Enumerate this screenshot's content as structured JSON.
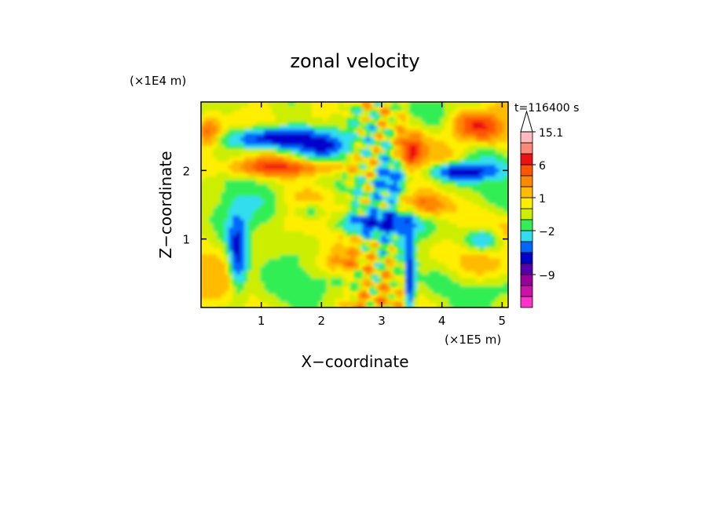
{
  "chart_data": {
    "type": "heatmap",
    "title": "zonal velocity",
    "xlabel": "X−coordinate",
    "ylabel": "Z−coordinate",
    "x_unit": "(×1E5 m)",
    "y_unit": "(×1E4 m)",
    "time_label": "t=116400 s",
    "xlim": [
      0,
      5.1
    ],
    "ylim": [
      0,
      3.0
    ],
    "x_ticks": [
      {
        "value": 1,
        "label": "1"
      },
      {
        "value": 2,
        "label": "2"
      },
      {
        "value": 3,
        "label": "3"
      },
      {
        "value": 4,
        "label": "4"
      },
      {
        "value": 5,
        "label": "5"
      }
    ],
    "y_ticks": [
      {
        "value": 1,
        "label": "1"
      },
      {
        "value": 2,
        "label": "2"
      }
    ],
    "colorbar": {
      "levels": [
        {
          "color": "#ff33cc"
        },
        {
          "color": "#cc11aa"
        },
        {
          "color": "#990099"
        },
        {
          "color": "#5500aa"
        },
        {
          "color": "#0000cc"
        },
        {
          "color": "#0066ff"
        },
        {
          "color": "#33ddee"
        },
        {
          "color": "#33ee55"
        },
        {
          "color": "#ccee00"
        },
        {
          "color": "#ffee00"
        },
        {
          "color": "#ffbb00"
        },
        {
          "color": "#ff8800"
        },
        {
          "color": "#ff5500"
        },
        {
          "color": "#ee1111"
        },
        {
          "color": "#ff8877"
        },
        {
          "color": "#ffbbbb"
        }
      ],
      "labels": [
        {
          "value": "15.1",
          "boundary": 16
        },
        {
          "value": "6",
          "boundary": 13
        },
        {
          "value": "1",
          "boundary": 10
        },
        {
          "value": "−2",
          "boundary": 7
        },
        {
          "value": "−9",
          "boundary": 3
        }
      ]
    }
  }
}
